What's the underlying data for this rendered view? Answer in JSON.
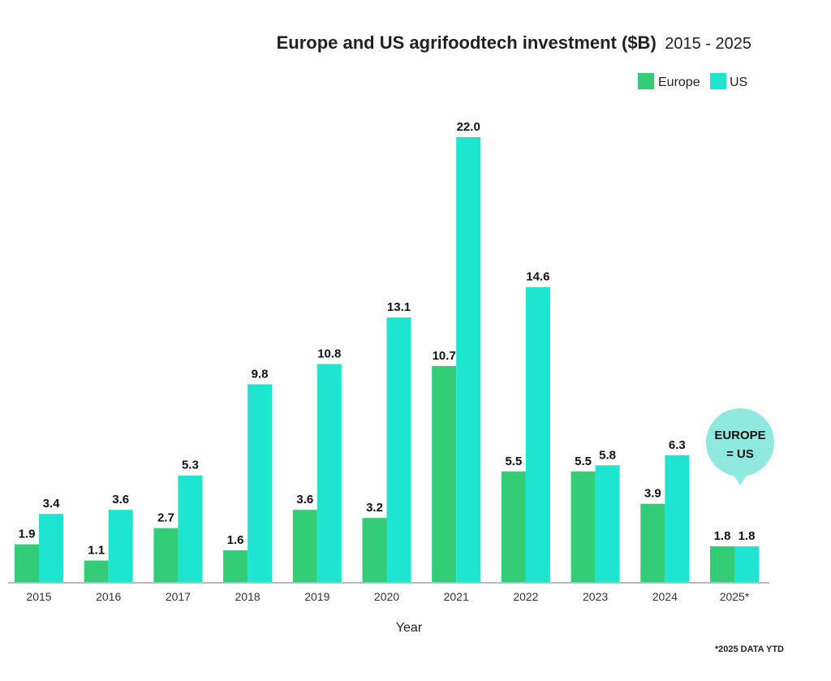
{
  "chart_data": {
    "type": "bar",
    "title": "Europe and US agrifoodtech investment ($B)",
    "subtitle": "2015 - 2025",
    "xlabel": "Year",
    "ylabel": "",
    "categories": [
      "2015",
      "2016",
      "2017",
      "2018",
      "2019",
      "2020",
      "2021",
      "2022",
      "2023",
      "2024",
      "2025*"
    ],
    "series": [
      {
        "name": "Europe",
        "color": "#33cc77",
        "values": [
          1.9,
          1.1,
          2.7,
          1.6,
          3.6,
          3.2,
          10.7,
          5.5,
          5.5,
          3.9,
          1.8
        ]
      },
      {
        "name": "US",
        "color": "#1de5d0",
        "values": [
          3.4,
          3.6,
          5.3,
          9.8,
          10.8,
          13.1,
          22.0,
          14.6,
          5.8,
          6.3,
          1.8
        ]
      }
    ],
    "ylim": [
      0,
      22
    ],
    "grid": false,
    "legend": "top-right",
    "annotation": {
      "line1": "EUROPE",
      "line2": "= US",
      "color": "#8fe9de"
    },
    "footnote": "*2025 DATA YTD"
  }
}
